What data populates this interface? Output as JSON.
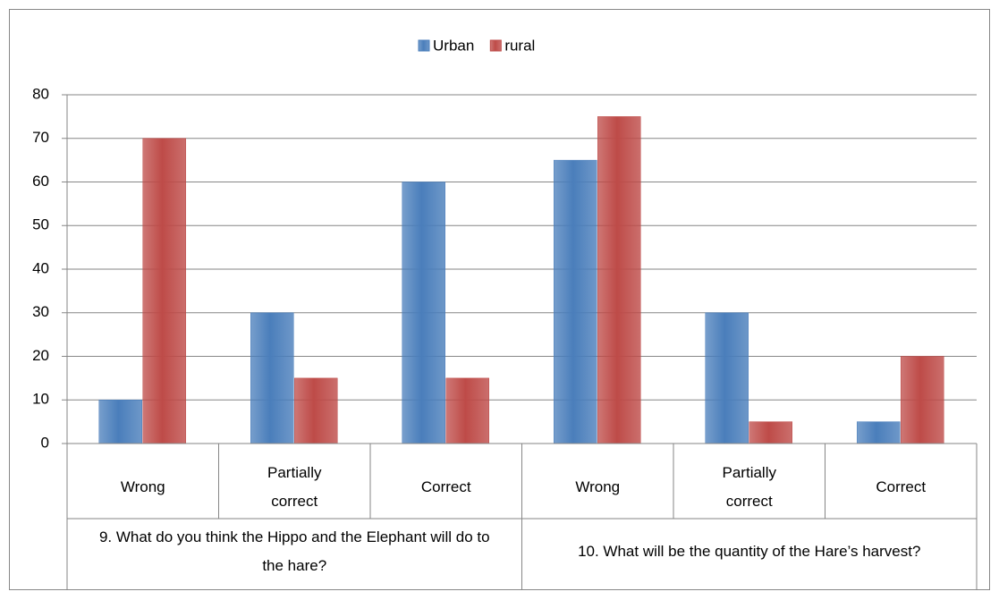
{
  "chart_data": {
    "type": "bar",
    "groups": [
      {
        "label": "9. What do you think the Hippo and the Elephant will do to the hare?",
        "categories": [
          "Wrong",
          "Partially correct",
          "Correct"
        ]
      },
      {
        "label": "10. What will be the quantity of the Hare’s harvest?",
        "categories": [
          "Wrong",
          "Partially correct",
          "Correct"
        ]
      }
    ],
    "series": [
      {
        "name": "Urban",
        "color": "#4a7ebb",
        "values": [
          10,
          30,
          60,
          65,
          30,
          5
        ]
      },
      {
        "name": "rural",
        "color": "#be4b48",
        "values": [
          70,
          15,
          15,
          75,
          5,
          20
        ]
      }
    ],
    "ylim": [
      0,
      80
    ],
    "yticks": [
      0,
      10,
      20,
      30,
      40,
      50,
      60,
      70,
      80
    ],
    "grid": true,
    "legend": "top"
  }
}
